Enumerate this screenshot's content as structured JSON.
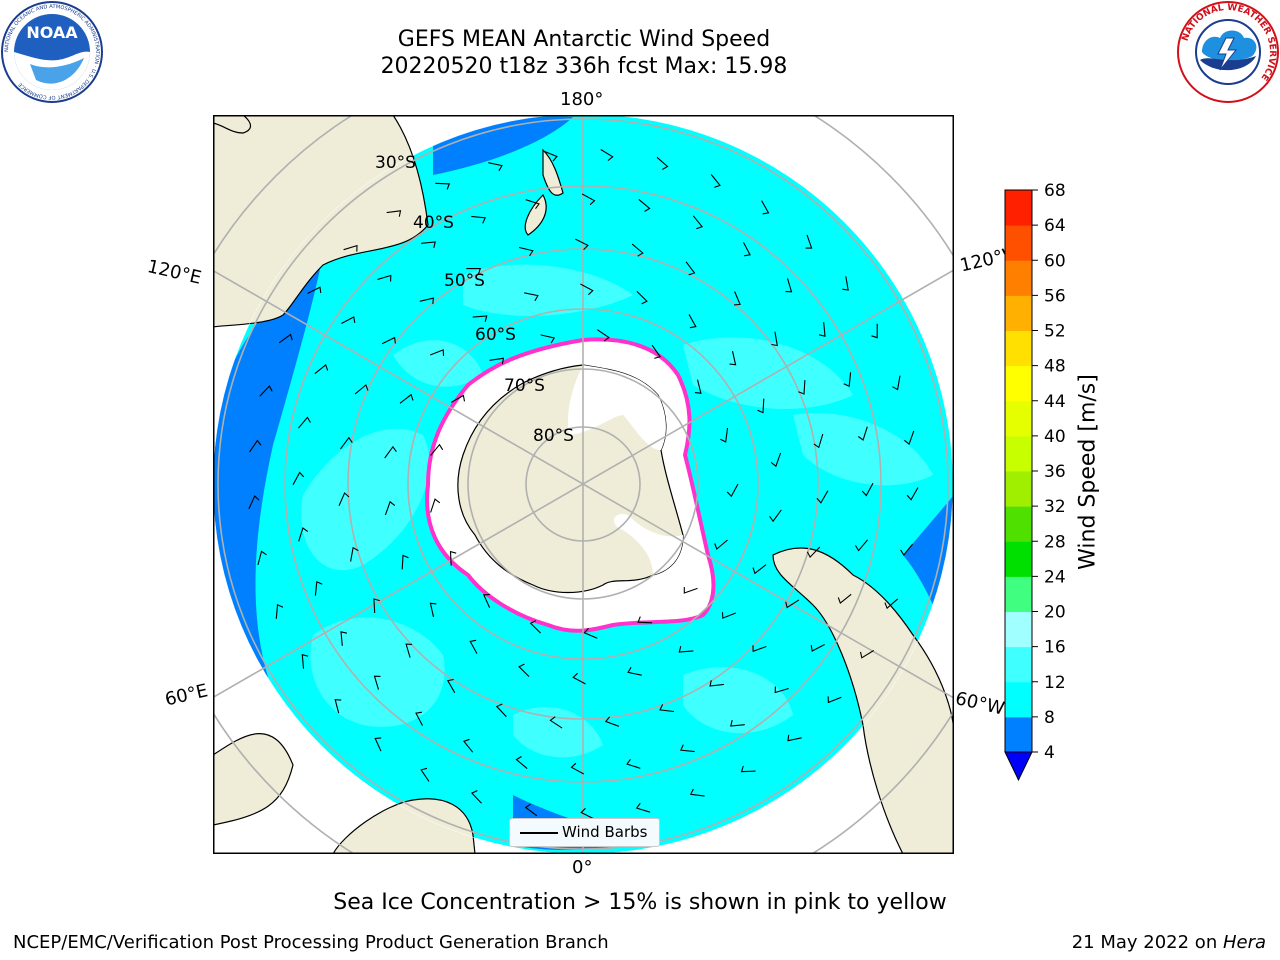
{
  "header": {
    "title_line1": "GEFS MEAN Antarctic Wind Speed",
    "title_line2": "20220520 t18z 336h fcst   Max: 15.98"
  },
  "logos": {
    "left": {
      "icon": "noaa-logo",
      "text": "NOAA",
      "ring_text": "NATIONAL OCEANIC AND ATMOSPHERIC ADMINISTRATION · U.S. DEPARTMENT OF COMMERCE"
    },
    "right": {
      "icon": "nws-logo",
      "ring_text": "NATIONAL WEATHER SERVICE"
    }
  },
  "map": {
    "projection": "south-polar-stereographic",
    "longitude_labels": {
      "top": "180°",
      "bottom": "0°",
      "upper_left": "120°E",
      "upper_right": "120°W",
      "lower_left": "60°E",
      "lower_right": "60°W"
    },
    "latitude_labels": [
      "30°S",
      "40°S",
      "50°S",
      "60°S",
      "70°S",
      "80°S"
    ],
    "colors": {
      "land": "#efedd8",
      "ocean_base": "#00ffff",
      "ocean_low": "#0080ff",
      "ocean_mid": "#40ffff",
      "sea_ice": "#ffffff",
      "ice_edge": "#ff33cc",
      "grid": "#b0b0b0"
    },
    "legend": {
      "icon": "wind-barb-line-icon",
      "label": "Wind Barbs"
    }
  },
  "colorbar": {
    "label": "Wind Speed [m/s]",
    "ticks": [
      "4",
      "8",
      "12",
      "16",
      "20",
      "24",
      "28",
      "32",
      "36",
      "40",
      "44",
      "48",
      "52",
      "56",
      "60",
      "64",
      "68"
    ],
    "colors": [
      "#0080ff",
      "#00ffff",
      "#40ffff",
      "#a0ffff",
      "#40ff80",
      "#00e000",
      "#50e000",
      "#a0ee00",
      "#c8ff00",
      "#e6ff00",
      "#ffff00",
      "#ffe000",
      "#ffb000",
      "#ff8000",
      "#ff5000",
      "#ff2000"
    ],
    "under_color": "#0000ff"
  },
  "subtitle": "Sea Ice Concentration > 15% is shown in pink to yellow",
  "footer": {
    "left": "NCEP/EMC/Verification Post Processing Product Generation Branch",
    "right_prefix": "21 May 2022 on ",
    "right_italic": "Hera"
  }
}
